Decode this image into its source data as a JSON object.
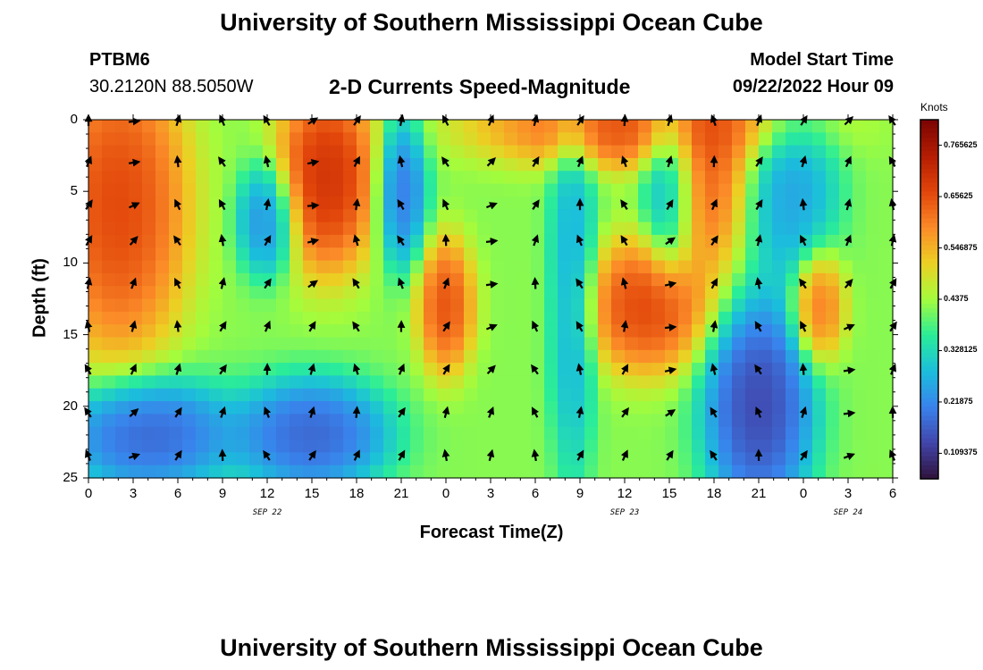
{
  "header": {
    "title": "University of Southern Mississippi Ocean Cube",
    "station": "PTBM6",
    "location": "30.2120N  88.5050W",
    "subtitle": "2-D Currents Speed-Magnitude",
    "model_start_label": "Model Start Time",
    "model_start_value": "09/22/2022 Hour 09"
  },
  "footer": {
    "title": "University of Southern Mississippi Ocean Cube"
  },
  "chart_data": {
    "type": "heatmap",
    "title": "2-D Currents Speed-Magnitude",
    "xlabel": "Forecast Time(Z)",
    "ylabel": "Depth (ft)",
    "x_range_hours": [
      0,
      54
    ],
    "y_range_ft": [
      0,
      25
    ],
    "y_inverted": true,
    "x_tick_labels": [
      "0",
      "3",
      "6",
      "9",
      "12",
      "15",
      "18",
      "21",
      "0",
      "3",
      "6",
      "9",
      "12",
      "15",
      "18",
      "21",
      "0",
      "3",
      "6"
    ],
    "y_tick_values": [
      0,
      5,
      10,
      15,
      20,
      25
    ],
    "y_tick_labels": [
      "0",
      "5",
      "10",
      "15",
      "20",
      "25"
    ],
    "date_labels": [
      {
        "text": "SEP 22",
        "hour": 12
      },
      {
        "text": "SEP 23",
        "hour": 36
      },
      {
        "text": "SEP 24",
        "hour": 51
      }
    ],
    "colorbar": {
      "unit": "Knots",
      "min": 0.055,
      "max": 0.82,
      "tick_values": [
        0.765625,
        0.65625,
        0.546875,
        0.4375,
        0.328125,
        0.21875,
        0.109375
      ],
      "tick_labels": [
        "0.765625",
        "0.65625",
        "0.546875",
        "0.4375",
        "0.328125",
        "0.21875",
        "0.109375"
      ]
    },
    "speed_features": [
      {
        "hour": 2,
        "depth": 6,
        "speed": 0.74,
        "sh": 3.5,
        "sd": 8
      },
      {
        "hour": 16,
        "depth": 4,
        "speed": 0.78,
        "sh": 2.6,
        "sd": 5
      },
      {
        "hour": 24,
        "depth": 13,
        "speed": 0.72,
        "sh": 1.4,
        "sd": 3.5
      },
      {
        "hour": 37.5,
        "depth": 13,
        "speed": 0.74,
        "sh": 3.2,
        "sd": 3.5
      },
      {
        "hour": 37,
        "depth": 0.5,
        "speed": 0.72,
        "sh": 8,
        "sd": 2.2
      },
      {
        "hour": 49,
        "depth": 13,
        "speed": 0.68,
        "sh": 1.3,
        "sd": 3
      },
      {
        "hour": 41.5,
        "depth": 3,
        "speed": 0.7,
        "sh": 2.6,
        "sd": 6
      },
      {
        "hour": 4,
        "depth": 22,
        "speed": 0.1,
        "sh": 4.5,
        "sd": 3
      },
      {
        "hour": 15,
        "depth": 22,
        "speed": 0.1,
        "sh": 4,
        "sd": 3
      },
      {
        "hour": 12,
        "depth": 7,
        "speed": 0.16,
        "sh": 1.5,
        "sd": 3
      },
      {
        "hour": 21,
        "depth": 5,
        "speed": 0.13,
        "sh": 1.3,
        "sd": 4
      },
      {
        "hour": 32.5,
        "depth": 12,
        "speed": 0.22,
        "sh": 1.2,
        "sd": 10
      },
      {
        "hour": 39,
        "depth": 4,
        "speed": 0.16,
        "sh": 1.4,
        "sd": 5
      },
      {
        "hour": 45,
        "depth": 20,
        "speed": 0.05,
        "sh": 2.8,
        "sd": 6
      },
      {
        "hour": 47,
        "depth": 5,
        "speed": 0.2,
        "sh": 2.5,
        "sd": 5
      }
    ],
    "arrow_rows_depth": [
      0,
      3,
      6,
      8.5,
      11.5,
      14.5,
      17.5,
      20.5,
      23.5
    ],
    "arrow_columns_hour": [
      0,
      3,
      6,
      9,
      12,
      15,
      18,
      21,
      24,
      27,
      30,
      33,
      36,
      39,
      42,
      45,
      48,
      51,
      54
    ]
  }
}
